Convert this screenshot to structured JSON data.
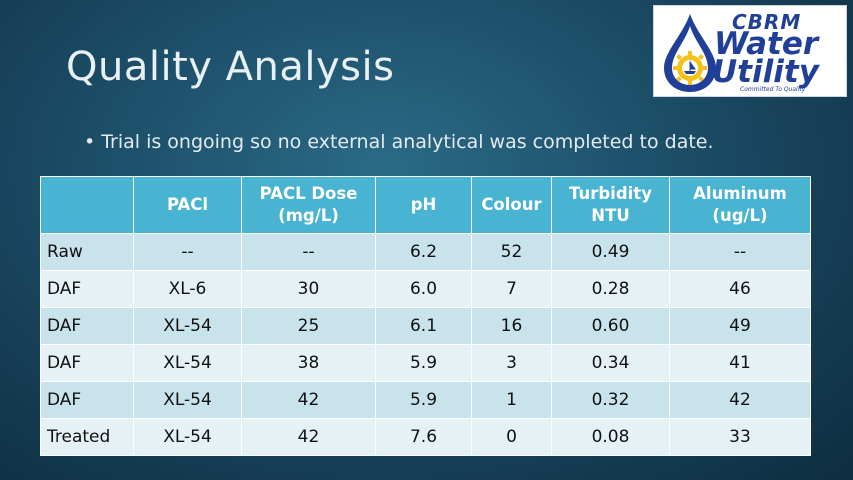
{
  "slide": {
    "title": "Quality Analysis",
    "bullet": "Trial is ongoing so no external analytical was completed to date."
  },
  "logo": {
    "line1": "CBRM",
    "line2": "Water",
    "line3": "Utility",
    "tagline": "Committed To Quality",
    "colors": {
      "primary": "#1f3f98",
      "gear": "#f2c21a"
    }
  },
  "table": {
    "headers": [
      {
        "line1": "",
        "line2": ""
      },
      {
        "line1": "PACl",
        "line2": ""
      },
      {
        "line1": "PACL Dose",
        "line2": "(mg/L)"
      },
      {
        "line1": "pH",
        "line2": ""
      },
      {
        "line1": "Colour",
        "line2": ""
      },
      {
        "line1": "Turbidity",
        "line2": "NTU"
      },
      {
        "line1": "Aluminum",
        "line2": "(ug/L)"
      }
    ],
    "rows": [
      [
        "Raw",
        "--",
        "--",
        "6.2",
        "52",
        "0.49",
        "--"
      ],
      [
        "DAF",
        "XL-6",
        "30",
        "6.0",
        "7",
        "0.28",
        "46"
      ],
      [
        "DAF",
        "XL-54",
        "25",
        "6.1",
        "16",
        "0.60",
        "49"
      ],
      [
        "DAF",
        "XL-54",
        "38",
        "5.9",
        "3",
        "0.34",
        "41"
      ],
      [
        "DAF",
        "XL-54",
        "42",
        "5.9",
        "1",
        "0.32",
        "42"
      ],
      [
        "Treated",
        "XL-54",
        "42",
        "7.6",
        "0",
        "0.08",
        "33"
      ]
    ],
    "colors": {
      "header": "#49b3d2",
      "row_odd": "#c9e3ec",
      "row_even": "#e6f1f6"
    }
  }
}
